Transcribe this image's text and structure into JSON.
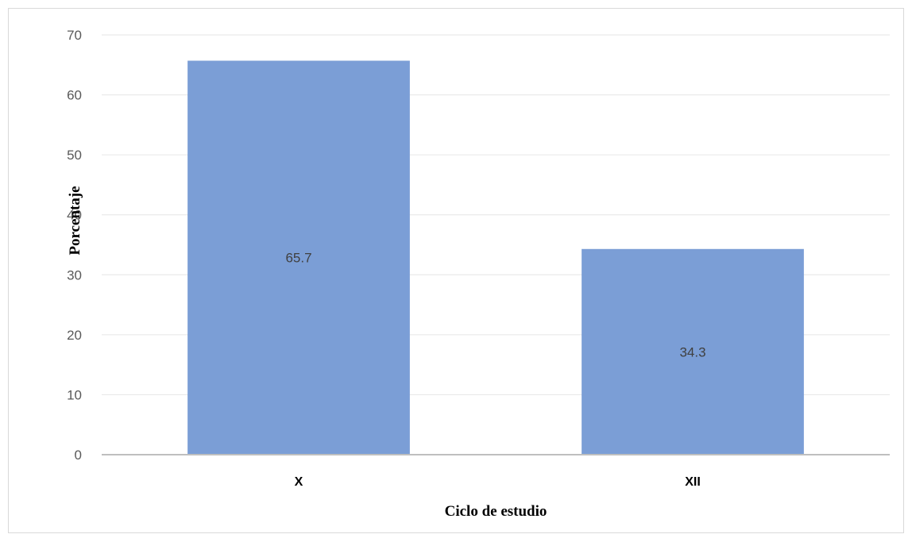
{
  "chart_data": {
    "type": "bar",
    "title": "",
    "categories": [
      "X",
      "XII"
    ],
    "values": [
      65.7,
      34.3
    ],
    "data_labels": [
      "65.7",
      "34.3"
    ],
    "xlabel": "Ciclo de estudio",
    "ylabel": "Porcentaje",
    "ylim": [
      0,
      70
    ],
    "yticks": [
      0,
      10,
      20,
      30,
      40,
      50,
      60,
      70
    ],
    "ytick_labels": [
      "0",
      "10",
      "20",
      "30",
      "40",
      "50",
      "60",
      "70"
    ],
    "grid": true,
    "legend": "none",
    "bar_color": "#7b9ed6",
    "grid_color": "#e6e6e6",
    "axis_color": "#bfbfbf"
  }
}
